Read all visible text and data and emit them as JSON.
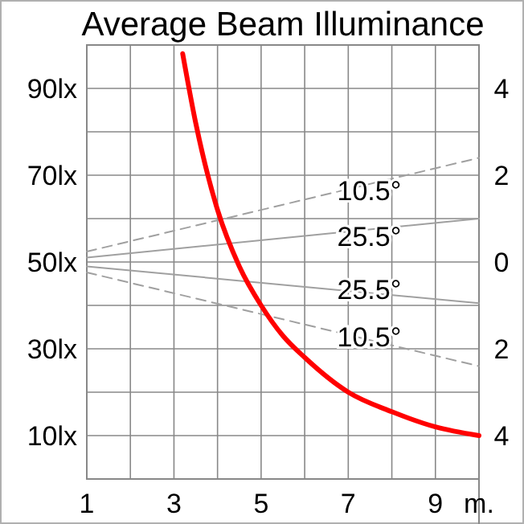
{
  "chart_data": {
    "type": "line",
    "title": "Average Beam Illuminance",
    "xlim": [
      1,
      10
    ],
    "xticks": [
      1,
      {
        "value": 2,
        "label": null
      },
      3,
      {
        "value": 4,
        "label": null
      },
      5,
      {
        "value": 6,
        "label": null
      },
      7,
      {
        "value": 8,
        "label": null
      },
      9,
      {
        "value": 10,
        "label": "m."
      }
    ],
    "ylim": [
      0,
      100
    ],
    "yticks": [
      {
        "value": 10,
        "label": "10lx"
      },
      {
        "value": 20,
        "label": null
      },
      {
        "value": 30,
        "label": "30lx"
      },
      {
        "value": 40,
        "label": null
      },
      {
        "value": 50,
        "label": "50lx"
      },
      {
        "value": 60,
        "label": null
      },
      {
        "value": 70,
        "label": "70lx"
      },
      {
        "value": 80,
        "label": null
      },
      {
        "value": 90,
        "label": "90lx"
      }
    ],
    "y2lim": [
      -5,
      5
    ],
    "y2ticks": [
      {
        "value": -4,
        "label": "4"
      },
      {
        "value": -2,
        "label": "2"
      },
      0,
      2,
      4
    ],
    "grid": true,
    "marker": "none",
    "series": [
      {
        "color": "#ff0000",
        "x": [
          3.2,
          3.5,
          4,
          4.5,
          5,
          5.5,
          6,
          7,
          8,
          9,
          10
        ],
        "values": [
          98,
          82,
          62,
          49,
          40,
          33,
          28,
          20,
          15.5,
          12,
          10
        ]
      },
      {
        "name": "10.5°",
        "color": "#a0a0a0",
        "axis": "y2",
        "line_style": "dashed",
        "x": [
          1,
          10
        ],
        "values": [
          0.24,
          2.4
        ]
      },
      {
        "name": "25.5°",
        "color": "#a0a0a0",
        "axis": "y2",
        "line_style": "solid",
        "x": [
          1,
          10
        ],
        "values": [
          0.1,
          1.0
        ]
      },
      {
        "name": "25.5°",
        "color": "#a0a0a0",
        "axis": "y2",
        "line_style": "solid",
        "x": [
          1,
          10
        ],
        "values": [
          -0.1,
          -0.95
        ]
      },
      {
        "name": "10.5°",
        "color": "#a0a0a0",
        "axis": "y2",
        "line_style": "dashed",
        "x": [
          1,
          10
        ],
        "values": [
          -0.24,
          -2.4
        ]
      }
    ]
  }
}
